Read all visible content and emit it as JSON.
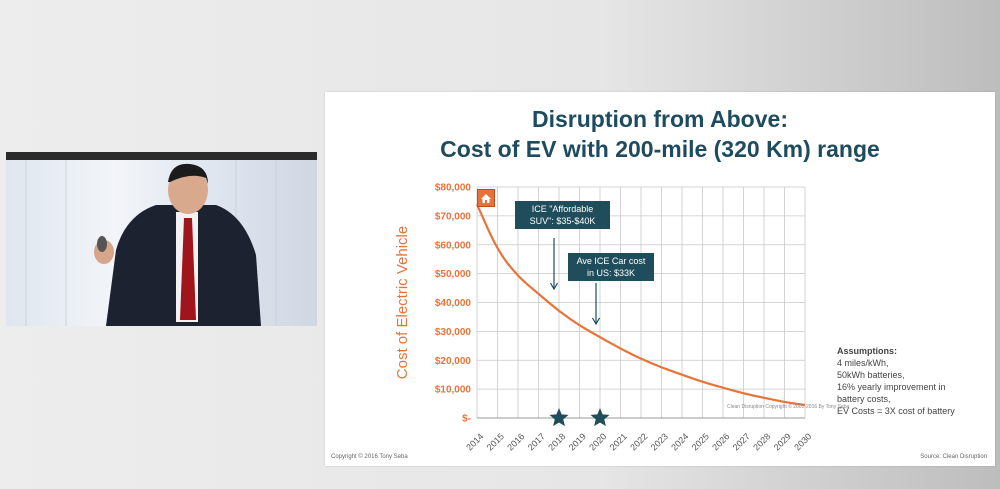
{
  "slide": {
    "title_line1": "Disruption from Above:",
    "title_line2": "Cost of EV with 200-mile (320 Km) range",
    "callout_affordable": "ICE \"Affordable SUV\": $35-$40K",
    "callout_ave": "Ave ICE Car cost in US: $33K",
    "assumptions_heading": "Assumptions:",
    "assumptions_lines": [
      "4 miles/kWh,",
      "50kWh batteries,",
      "16% yearly improvement in",
      "battery costs,",
      "EV Costs = 3X cost of battery"
    ],
    "footer_left": "Copyright © 2016 Tony Seba",
    "footer_right": "Source: Clean Disruption",
    "watermark": "Clean Disruption Copyright © 2001-2016 By Tony Seba",
    "home_icon": "home-icon",
    "star_icon": "star-icon",
    "colors": {
      "accent": "#e8733a",
      "title": "#1e4c5e",
      "callout": "#1f4d5c"
    }
  },
  "chart_data": {
    "type": "line",
    "title": "",
    "xlabel": "",
    "ylabel": "Cost of Electric Vehicle",
    "x": [
      "2014",
      "2015",
      "2016",
      "2017",
      "2018",
      "2019",
      "2020",
      "2021",
      "2022",
      "2023",
      "2024",
      "2025",
      "2026",
      "2027",
      "2028",
      "2029",
      "2030"
    ],
    "series": [
      {
        "values": [
          74000,
          58000,
          49000,
          43000,
          37000,
          32000,
          28000,
          24000,
          20500,
          17500,
          15000,
          12500,
          10500,
          8500,
          7000,
          5500,
          4500
        ]
      }
    ],
    "ylim": [
      0,
      80000
    ],
    "yticks": [
      "$-",
      "$10,000",
      "$20,000",
      "$30,000",
      "$40,000",
      "$50,000",
      "$60,000",
      "$70,000",
      "$80,000"
    ],
    "grid": true,
    "star_markers": [
      "2018",
      "2020"
    ]
  }
}
